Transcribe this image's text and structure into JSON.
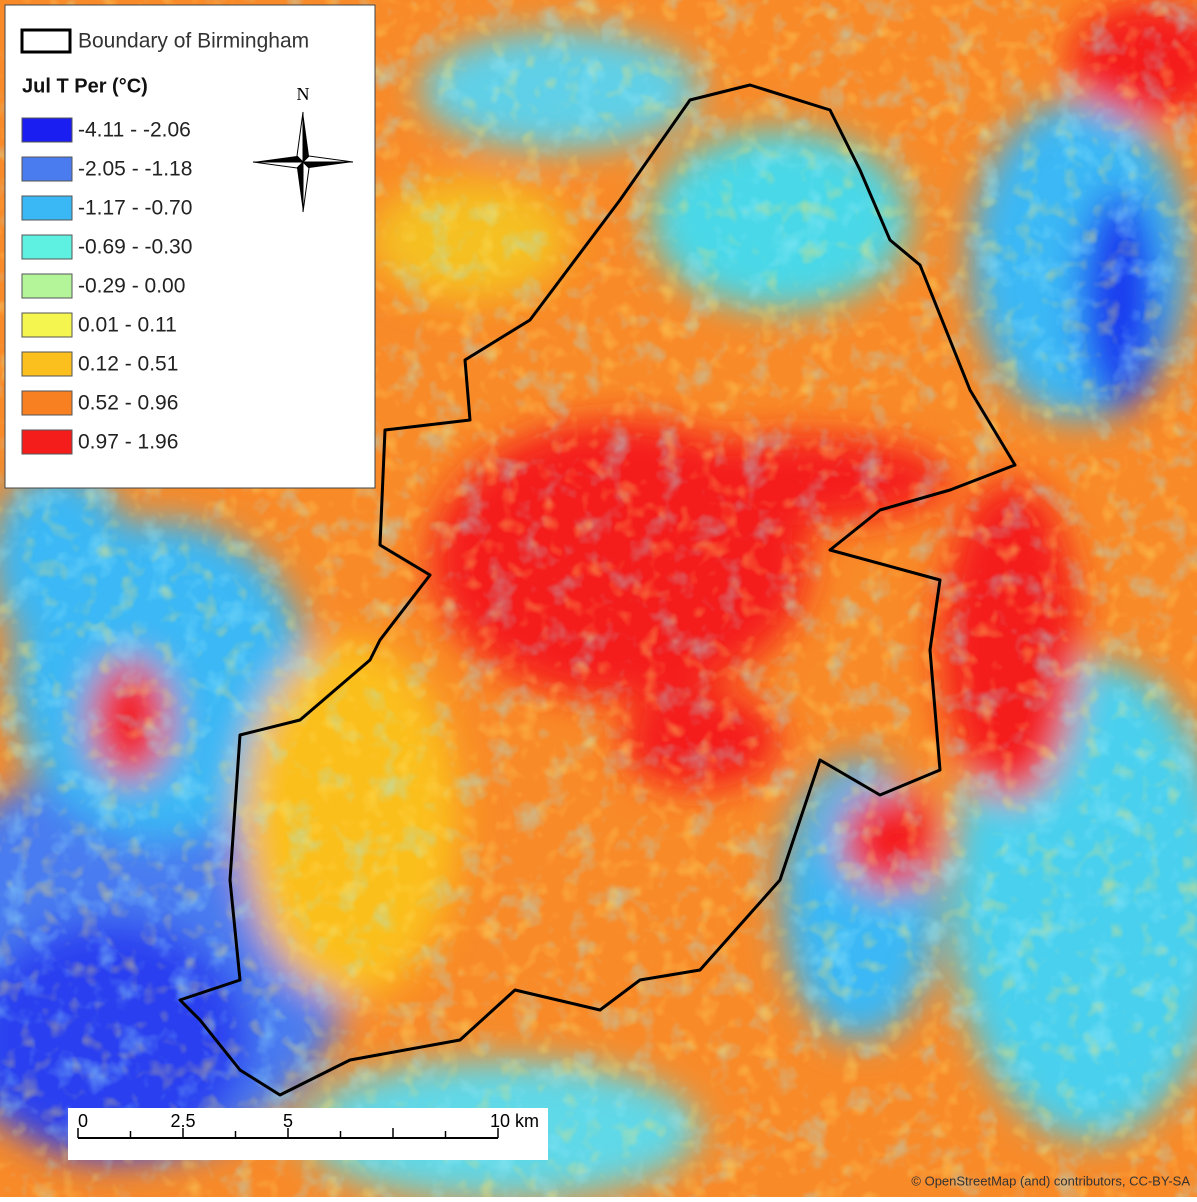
{
  "legend": {
    "boundary_label": "Boundary of Birmingham",
    "title": "Jul T Per (°C)",
    "classes": [
      {
        "label": "-4.11 - -2.06",
        "color": "#1a1ef0"
      },
      {
        "label": "-2.05 - -1.18",
        "color": "#4a7cf0"
      },
      {
        "label": "-1.17 - -0.70",
        "color": "#3ab8f5"
      },
      {
        "label": "-0.69 - -0.30",
        "color": "#5ef0e0"
      },
      {
        "label": "-0.29 - 0.00",
        "color": "#b4f59a"
      },
      {
        "label": "0.01 - 0.11",
        "color": "#f5f550"
      },
      {
        "label": "0.12 - 0.51",
        "color": "#fbbf1e"
      },
      {
        "label": "0.52 - 0.96",
        "color": "#f98020"
      },
      {
        "label": "0.97 - 1.96",
        "color": "#f51c1c"
      }
    ]
  },
  "north_arrow": "N",
  "scale_bar": {
    "labels": [
      "0",
      "2.5",
      "5",
      "10 km"
    ]
  },
  "attribution": "© OpenStreetMap (and) contributors, CC-BY-SA"
}
